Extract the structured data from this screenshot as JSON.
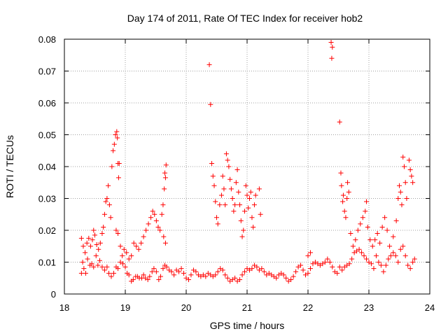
{
  "chart_data": {
    "type": "scatter",
    "title": "Day 174 of 2011, Rate Of TEC Index for receiver hob2",
    "xlabel": "GPS time / hours",
    "ylabel": "ROTI / TECUs",
    "xlim": [
      18,
      24
    ],
    "ylim": [
      0,
      0.08
    ],
    "xticks": [
      "18",
      "19",
      "20",
      "21",
      "22",
      "23",
      "24"
    ],
    "yticks": [
      "0",
      "0.01",
      "0.02",
      "0.03",
      "0.04",
      "0.05",
      "0.06",
      "0.07",
      "0.08"
    ],
    "grid": true,
    "marker": "plus",
    "color": "#ff0000",
    "series": [
      {
        "name": "ROTI",
        "points": [
          [
            18.28,
            0.0065
          ],
          [
            18.3,
            0.01
          ],
          [
            18.32,
            0.008
          ],
          [
            18.35,
            0.0065
          ],
          [
            18.38,
            0.011
          ],
          [
            18.42,
            0.009
          ],
          [
            18.45,
            0.0095
          ],
          [
            18.48,
            0.0085
          ],
          [
            18.52,
            0.012
          ],
          [
            18.55,
            0.009
          ],
          [
            18.58,
            0.0105
          ],
          [
            18.62,
            0.0085
          ],
          [
            18.66,
            0.0075
          ],
          [
            18.7,
            0.0085
          ],
          [
            18.73,
            0.0065
          ],
          [
            18.77,
            0.0055
          ],
          [
            18.81,
            0.0065
          ],
          [
            18.85,
            0.0085
          ],
          [
            18.88,
            0.008
          ],
          [
            18.92,
            0.01
          ],
          [
            18.96,
            0.0095
          ],
          [
            19.0,
            0.0085
          ],
          [
            19.03,
            0.0065
          ],
          [
            19.06,
            0.006
          ],
          [
            19.1,
            0.004
          ],
          [
            19.13,
            0.0045
          ],
          [
            19.17,
            0.0055
          ],
          [
            19.2,
            0.0055
          ],
          [
            19.23,
            0.005
          ],
          [
            19.27,
            0.005
          ],
          [
            19.3,
            0.006
          ],
          [
            19.33,
            0.005
          ],
          [
            19.37,
            0.0045
          ],
          [
            19.4,
            0.0055
          ],
          [
            19.44,
            0.007
          ],
          [
            19.47,
            0.008
          ],
          [
            19.51,
            0.007
          ],
          [
            19.55,
            0.0045
          ],
          [
            19.58,
            0.0055
          ],
          [
            19.62,
            0.008
          ],
          [
            19.65,
            0.009
          ],
          [
            19.68,
            0.0085
          ],
          [
            19.72,
            0.0075
          ],
          [
            19.76,
            0.007
          ],
          [
            19.8,
            0.006
          ],
          [
            19.84,
            0.0075
          ],
          [
            19.88,
            0.007
          ],
          [
            19.92,
            0.008
          ],
          [
            19.96,
            0.0065
          ],
          [
            20.0,
            0.005
          ],
          [
            20.04,
            0.0045
          ],
          [
            20.08,
            0.006
          ],
          [
            20.12,
            0.0075
          ],
          [
            20.16,
            0.007
          ],
          [
            20.2,
            0.006
          ],
          [
            20.24,
            0.0055
          ],
          [
            20.28,
            0.006
          ],
          [
            20.32,
            0.0055
          ],
          [
            20.36,
            0.0065
          ],
          [
            20.4,
            0.006
          ],
          [
            20.44,
            0.0055
          ],
          [
            20.48,
            0.006
          ],
          [
            20.52,
            0.007
          ],
          [
            20.56,
            0.008
          ],
          [
            20.6,
            0.0075
          ],
          [
            20.64,
            0.006
          ],
          [
            20.68,
            0.005
          ],
          [
            20.72,
            0.004
          ],
          [
            20.76,
            0.0045
          ],
          [
            20.8,
            0.005
          ],
          [
            20.84,
            0.004
          ],
          [
            20.88,
            0.0045
          ],
          [
            20.92,
            0.006
          ],
          [
            20.96,
            0.007
          ],
          [
            21.0,
            0.008
          ],
          [
            21.04,
            0.0075
          ],
          [
            21.08,
            0.008
          ],
          [
            21.12,
            0.009
          ],
          [
            21.16,
            0.0085
          ],
          [
            21.2,
            0.0075
          ],
          [
            21.24,
            0.008
          ],
          [
            21.28,
            0.007
          ],
          [
            21.32,
            0.006
          ],
          [
            21.36,
            0.0065
          ],
          [
            21.4,
            0.006
          ],
          [
            21.44,
            0.0055
          ],
          [
            21.48,
            0.005
          ],
          [
            21.52,
            0.006
          ],
          [
            21.56,
            0.0065
          ],
          [
            21.6,
            0.006
          ],
          [
            21.64,
            0.005
          ],
          [
            21.68,
            0.004
          ],
          [
            21.72,
            0.0045
          ],
          [
            21.76,
            0.0055
          ],
          [
            21.8,
            0.007
          ],
          [
            21.84,
            0.0085
          ],
          [
            21.88,
            0.009
          ],
          [
            21.92,
            0.0075
          ],
          [
            21.96,
            0.006
          ],
          [
            22.0,
            0.0065
          ],
          [
            22.04,
            0.008
          ],
          [
            22.08,
            0.0095
          ],
          [
            22.12,
            0.01
          ],
          [
            22.16,
            0.0095
          ],
          [
            22.2,
            0.009
          ],
          [
            22.24,
            0.0095
          ],
          [
            22.28,
            0.01
          ],
          [
            22.32,
            0.011
          ],
          [
            22.36,
            0.01
          ],
          [
            22.4,
            0.0085
          ],
          [
            22.44,
            0.007
          ],
          [
            22.48,
            0.0065
          ],
          [
            22.52,
            0.0085
          ],
          [
            22.56,
            0.0075
          ],
          [
            22.6,
            0.0085
          ],
          [
            22.64,
            0.009
          ],
          [
            22.68,
            0.0095
          ],
          [
            22.72,
            0.011
          ],
          [
            22.76,
            0.013
          ],
          [
            22.8,
            0.0135
          ],
          [
            22.84,
            0.014
          ],
          [
            22.88,
            0.013
          ],
          [
            22.92,
            0.012
          ],
          [
            22.96,
            0.011
          ],
          [
            23.0,
            0.01
          ],
          [
            23.04,
            0.0095
          ],
          [
            23.08,
            0.008
          ],
          [
            23.12,
            0.012
          ],
          [
            23.16,
            0.01
          ],
          [
            23.2,
            0.009
          ],
          [
            23.24,
            0.007
          ],
          [
            23.28,
            0.009
          ],
          [
            23.32,
            0.011
          ],
          [
            23.36,
            0.012
          ],
          [
            23.4,
            0.013
          ],
          [
            23.44,
            0.012
          ],
          [
            23.48,
            0.01
          ],
          [
            23.52,
            0.014
          ],
          [
            23.56,
            0.015
          ],
          [
            23.6,
            0.012
          ],
          [
            23.64,
            0.009
          ],
          [
            23.68,
            0.008
          ],
          [
            23.72,
            0.01
          ],
          [
            23.75,
            0.011
          ],
          [
            18.28,
            0.0175
          ],
          [
            18.31,
            0.015
          ],
          [
            18.34,
            0.013
          ],
          [
            18.37,
            0.016
          ],
          [
            18.4,
            0.0175
          ],
          [
            18.43,
            0.015
          ],
          [
            18.46,
            0.017
          ],
          [
            18.48,
            0.02
          ],
          [
            18.5,
            0.0185
          ],
          [
            18.53,
            0.0155
          ],
          [
            18.56,
            0.014
          ],
          [
            18.59,
            0.016
          ],
          [
            18.62,
            0.019
          ],
          [
            18.64,
            0.021
          ],
          [
            18.66,
            0.025
          ],
          [
            18.68,
            0.029
          ],
          [
            18.7,
            0.03
          ],
          [
            18.72,
            0.034
          ],
          [
            18.74,
            0.028
          ],
          [
            18.76,
            0.024
          ],
          [
            18.78,
            0.04
          ],
          [
            18.8,
            0.045
          ],
          [
            18.82,
            0.047
          ],
          [
            18.84,
            0.05
          ],
          [
            18.86,
            0.051
          ],
          [
            18.87,
            0.049
          ],
          [
            18.88,
            0.041
          ],
          [
            18.89,
            0.0365
          ],
          [
            18.9,
            0.041
          ],
          [
            18.85,
            0.02
          ],
          [
            18.88,
            0.019
          ],
          [
            18.92,
            0.015
          ],
          [
            18.95,
            0.012
          ],
          [
            18.98,
            0.014
          ],
          [
            19.02,
            0.013
          ],
          [
            19.06,
            0.011
          ],
          [
            19.1,
            0.012
          ],
          [
            19.14,
            0.016
          ],
          [
            19.18,
            0.015
          ],
          [
            19.22,
            0.014
          ],
          [
            19.26,
            0.016
          ],
          [
            19.3,
            0.018
          ],
          [
            19.34,
            0.02
          ],
          [
            19.38,
            0.022
          ],
          [
            19.42,
            0.024
          ],
          [
            19.45,
            0.026
          ],
          [
            19.48,
            0.025
          ],
          [
            19.51,
            0.023
          ],
          [
            19.54,
            0.021
          ],
          [
            19.57,
            0.02
          ],
          [
            19.6,
            0.025
          ],
          [
            19.62,
            0.028
          ],
          [
            19.64,
            0.033
          ],
          [
            19.65,
            0.038
          ],
          [
            19.66,
            0.0365
          ],
          [
            19.67,
            0.0405
          ],
          [
            19.63,
            0.018
          ],
          [
            19.66,
            0.016
          ],
          [
            20.38,
            0.072
          ],
          [
            20.4,
            0.0595
          ],
          [
            20.42,
            0.041
          ],
          [
            20.44,
            0.037
          ],
          [
            20.46,
            0.034
          ],
          [
            20.48,
            0.029
          ],
          [
            20.5,
            0.024
          ],
          [
            20.52,
            0.022
          ],
          [
            20.55,
            0.028
          ],
          [
            20.58,
            0.031
          ],
          [
            20.6,
            0.037
          ],
          [
            20.62,
            0.033
          ],
          [
            20.64,
            0.028
          ],
          [
            20.66,
            0.044
          ],
          [
            20.68,
            0.042
          ],
          [
            20.7,
            0.04
          ],
          [
            20.72,
            0.036
          ],
          [
            20.74,
            0.033
          ],
          [
            20.76,
            0.03
          ],
          [
            20.78,
            0.026
          ],
          [
            20.8,
            0.028
          ],
          [
            20.82,
            0.035
          ],
          [
            20.84,
            0.039
          ],
          [
            20.86,
            0.032
          ],
          [
            20.88,
            0.028
          ],
          [
            20.9,
            0.023
          ],
          [
            20.92,
            0.018
          ],
          [
            20.94,
            0.02
          ],
          [
            20.96,
            0.026
          ],
          [
            20.98,
            0.034
          ],
          [
            21.0,
            0.031
          ],
          [
            21.02,
            0.027
          ],
          [
            21.04,
            0.03
          ],
          [
            21.06,
            0.032
          ],
          [
            21.08,
            0.024
          ],
          [
            21.1,
            0.021
          ],
          [
            21.12,
            0.028
          ],
          [
            21.14,
            0.031
          ],
          [
            21.2,
            0.033
          ],
          [
            21.22,
            0.025
          ],
          [
            22.0,
            0.012
          ],
          [
            22.04,
            0.013
          ],
          [
            22.38,
            0.079
          ],
          [
            22.4,
            0.0775
          ],
          [
            22.39,
            0.074
          ],
          [
            22.52,
            0.054
          ],
          [
            22.54,
            0.038
          ],
          [
            22.55,
            0.034
          ],
          [
            22.57,
            0.029
          ],
          [
            22.58,
            0.031
          ],
          [
            22.6,
            0.026
          ],
          [
            22.62,
            0.024
          ],
          [
            22.64,
            0.03
          ],
          [
            22.65,
            0.035
          ],
          [
            22.67,
            0.032
          ],
          [
            22.7,
            0.019
          ],
          [
            22.74,
            0.015
          ],
          [
            22.78,
            0.017
          ],
          [
            22.82,
            0.02
          ],
          [
            22.86,
            0.022
          ],
          [
            22.9,
            0.024
          ],
          [
            22.94,
            0.026
          ],
          [
            22.96,
            0.029
          ],
          [
            22.98,
            0.021
          ],
          [
            23.02,
            0.017
          ],
          [
            23.06,
            0.015
          ],
          [
            23.1,
            0.017
          ],
          [
            23.14,
            0.019
          ],
          [
            23.18,
            0.016
          ],
          [
            23.22,
            0.021
          ],
          [
            23.26,
            0.024
          ],
          [
            23.3,
            0.02
          ],
          [
            23.34,
            0.015
          ],
          [
            23.4,
            0.018
          ],
          [
            23.45,
            0.023
          ],
          [
            23.48,
            0.03
          ],
          [
            23.5,
            0.034
          ],
          [
            23.52,
            0.032
          ],
          [
            23.54,
            0.028
          ],
          [
            23.56,
            0.043
          ],
          [
            23.58,
            0.04
          ],
          [
            23.6,
            0.035
          ],
          [
            23.62,
            0.03
          ],
          [
            23.66,
            0.042
          ],
          [
            23.68,
            0.039
          ],
          [
            23.7,
            0.037
          ],
          [
            23.72,
            0.035
          ]
        ]
      }
    ]
  }
}
